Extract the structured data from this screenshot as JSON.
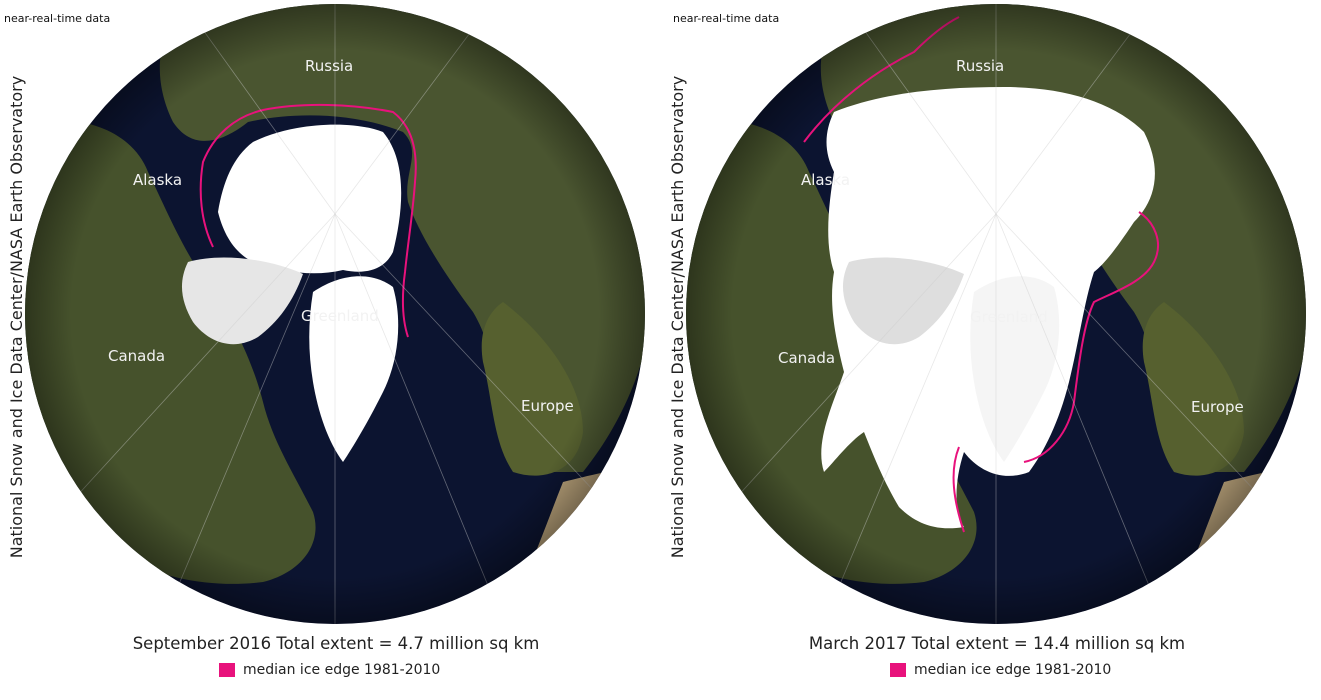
{
  "colors": {
    "median_edge": "#e8127c",
    "ocean": "#0c1430",
    "land_dark": "#3c4a26",
    "land_mid": "#56602f",
    "desert": "#b9a27a",
    "ice": "#ffffff"
  },
  "panels": [
    {
      "watermark": "near-real-time data",
      "credit": "National Snow and Ice Data Center/NASA Earth Observatory",
      "caption": "September 2016 Total extent = 4.7 million sq km",
      "legend_label": "median ice edge 1981-2010",
      "labels": {
        "russia": "Russia",
        "alaska": "Alaska",
        "canada": "Canada",
        "greenland": "Greenland",
        "europe": "Europe"
      },
      "total_extent_million_sq_km": 4.7
    },
    {
      "watermark": "near-real-time data",
      "credit": "National Snow and Ice Data Center/NASA Earth Observatory",
      "caption": "March 2017 Total extent = 14.4 million sq km",
      "legend_label": "median ice edge 1981-2010",
      "labels": {
        "russia": "Russia",
        "alaska": "Alaska",
        "canada": "Canada",
        "greenland": "Greenland",
        "europe": "Europe"
      },
      "total_extent_million_sq_km": 14.4
    }
  ]
}
